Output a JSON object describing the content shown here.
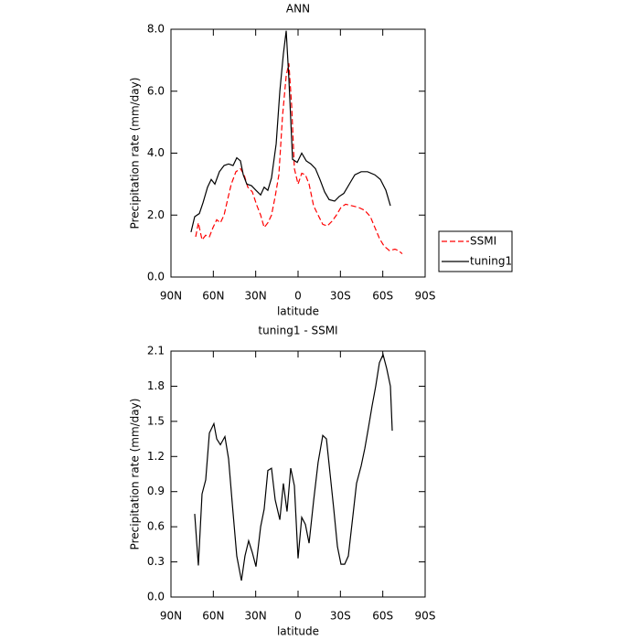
{
  "chart_data": [
    {
      "type": "line",
      "title": "ANN",
      "xlabel": "latitude",
      "ylabel": "Precipitation rate (mm/day)",
      "xlim": [
        90,
        -90
      ],
      "xticks": [
        {
          "value": 90,
          "label": "90N"
        },
        {
          "value": 60,
          "label": "60N"
        },
        {
          "value": 30,
          "label": "30N"
        },
        0,
        {
          "value": -30,
          "label": "30S"
        },
        {
          "value": -60,
          "label": "60S"
        },
        {
          "value": -90,
          "label": "90S"
        }
      ],
      "ylim": [
        0,
        8
      ],
      "yticks": [
        {
          "value": 0,
          "label": "0.0"
        },
        {
          "value": 2,
          "label": "2.0"
        },
        {
          "value": 4,
          "label": "4.0"
        },
        {
          "value": 6,
          "label": "6.0"
        },
        {
          "value": 8,
          "label": "8.0"
        }
      ],
      "legend": "right",
      "series": [
        {
          "name": "SSMI",
          "color": "#ff0000",
          "dash": "dashed",
          "x": [
            72.5,
            70.6,
            68.0,
            65.4,
            62.8,
            60.2,
            57.6,
            55.0,
            52.4,
            49.9,
            47.3,
            44.0,
            40.8,
            38.2,
            35.6,
            32.4,
            29.1,
            26.5,
            24.0,
            21.4,
            18.8,
            16.2,
            13.6,
            11.0,
            8.4,
            6.5,
            4.5,
            2.6,
            0.0,
            -2.6,
            -5.2,
            -7.8,
            -11.0,
            -14.2,
            -17.5,
            -20.7,
            -24.0,
            -27.2,
            -30.4,
            -33.7,
            -38.2,
            -42.7,
            -47.3,
            -51.2,
            -54.4,
            -57.6,
            -60.9,
            -64.8,
            -68.6,
            -71.2,
            -73.8
          ],
          "values": [
            1.3,
            1.75,
            1.2,
            1.35,
            1.3,
            1.6,
            1.85,
            1.75,
            2.0,
            2.5,
            3.0,
            3.4,
            3.5,
            3.3,
            2.9,
            2.75,
            2.3,
            2.0,
            1.6,
            1.75,
            2.0,
            2.6,
            3.3,
            5.2,
            6.5,
            6.9,
            5.5,
            3.5,
            3.0,
            3.35,
            3.3,
            3.0,
            2.3,
            2.0,
            1.7,
            1.65,
            1.8,
            2.0,
            2.25,
            2.35,
            2.3,
            2.25,
            2.15,
            1.95,
            1.6,
            1.25,
            1.0,
            0.85,
            0.9,
            0.85,
            0.75
          ]
        },
        {
          "name": "tuning1",
          "color": "#000000",
          "dash": "solid",
          "x": [
            75.8,
            73.2,
            69.9,
            67.3,
            64.1,
            61.5,
            58.9,
            55.7,
            52.4,
            49.2,
            46.0,
            43.4,
            40.8,
            38.8,
            36.3,
            33.0,
            29.8,
            26.5,
            24.0,
            21.4,
            18.8,
            15.5,
            12.9,
            10.4,
            8.4,
            6.5,
            3.9,
            0.6,
            -2.6,
            -5.8,
            -9.1,
            -12.3,
            -15.5,
            -18.8,
            -22.0,
            -25.9,
            -29.1,
            -32.4,
            -36.3,
            -40.2,
            -44.7,
            -49.2,
            -54.4,
            -58.3,
            -62.2,
            -65.4
          ],
          "values": [
            1.45,
            1.95,
            2.05,
            2.4,
            2.9,
            3.15,
            3.0,
            3.4,
            3.6,
            3.65,
            3.6,
            3.85,
            3.75,
            3.3,
            3.0,
            2.95,
            2.8,
            2.65,
            2.9,
            2.8,
            3.2,
            4.3,
            6.0,
            7.2,
            7.95,
            6.4,
            3.8,
            3.7,
            4.0,
            3.75,
            3.65,
            3.5,
            3.15,
            2.75,
            2.5,
            2.45,
            2.6,
            2.7,
            3.0,
            3.3,
            3.4,
            3.4,
            3.3,
            3.15,
            2.8,
            2.3
          ]
        }
      ]
    },
    {
      "type": "line",
      "title": "tuning1 - SSMI",
      "xlabel": "latitude",
      "ylabel": "Precipitation rate (mm/day)",
      "xlim": [
        90,
        -90
      ],
      "xticks": [
        {
          "value": 90,
          "label": "90N"
        },
        {
          "value": 60,
          "label": "60N"
        },
        {
          "value": 30,
          "label": "30N"
        },
        0,
        {
          "value": -30,
          "label": "30S"
        },
        {
          "value": -60,
          "label": "60S"
        },
        {
          "value": -90,
          "label": "90S"
        }
      ],
      "ylim": [
        0,
        2.1
      ],
      "yticks": [
        {
          "value": 0,
          "label": "0.0"
        },
        0.3,
        0.6,
        0.9,
        1.2,
        1.5,
        1.8,
        2.1
      ],
      "series": [
        {
          "color": "#000000",
          "dash": "solid",
          "x": [
            73.2,
            70.6,
            68.0,
            65.4,
            62.8,
            59.6,
            57.6,
            55.0,
            51.8,
            49.2,
            46.6,
            43.4,
            40.1,
            37.6,
            35.0,
            32.4,
            29.8,
            26.5,
            24.0,
            21.4,
            18.8,
            16.2,
            12.9,
            10.4,
            7.8,
            5.2,
            2.6,
            0.0,
            -2.6,
            -5.2,
            -7.8,
            -11.0,
            -14.2,
            -17.5,
            -20.1,
            -22.7,
            -25.3,
            -27.9,
            -30.4,
            -33.0,
            -35.6,
            -38.9,
            -41.4,
            -44.7,
            -47.3,
            -49.9,
            -52.4,
            -55.0,
            -57.6,
            -60.2,
            -62.8,
            -65.4,
            -66.7
          ],
          "values": [
            0.71,
            0.27,
            0.88,
            1.0,
            1.4,
            1.48,
            1.35,
            1.3,
            1.37,
            1.18,
            0.8,
            0.35,
            0.14,
            0.35,
            0.48,
            0.38,
            0.26,
            0.6,
            0.75,
            1.08,
            1.1,
            0.83,
            0.66,
            0.97,
            0.73,
            1.1,
            0.95,
            0.33,
            0.68,
            0.62,
            0.46,
            0.82,
            1.15,
            1.38,
            1.35,
            1.05,
            0.75,
            0.43,
            0.28,
            0.28,
            0.35,
            0.7,
            0.97,
            1.12,
            1.27,
            1.45,
            1.63,
            1.8,
            2.0,
            2.07,
            1.95,
            1.8,
            1.42
          ]
        }
      ]
    }
  ]
}
